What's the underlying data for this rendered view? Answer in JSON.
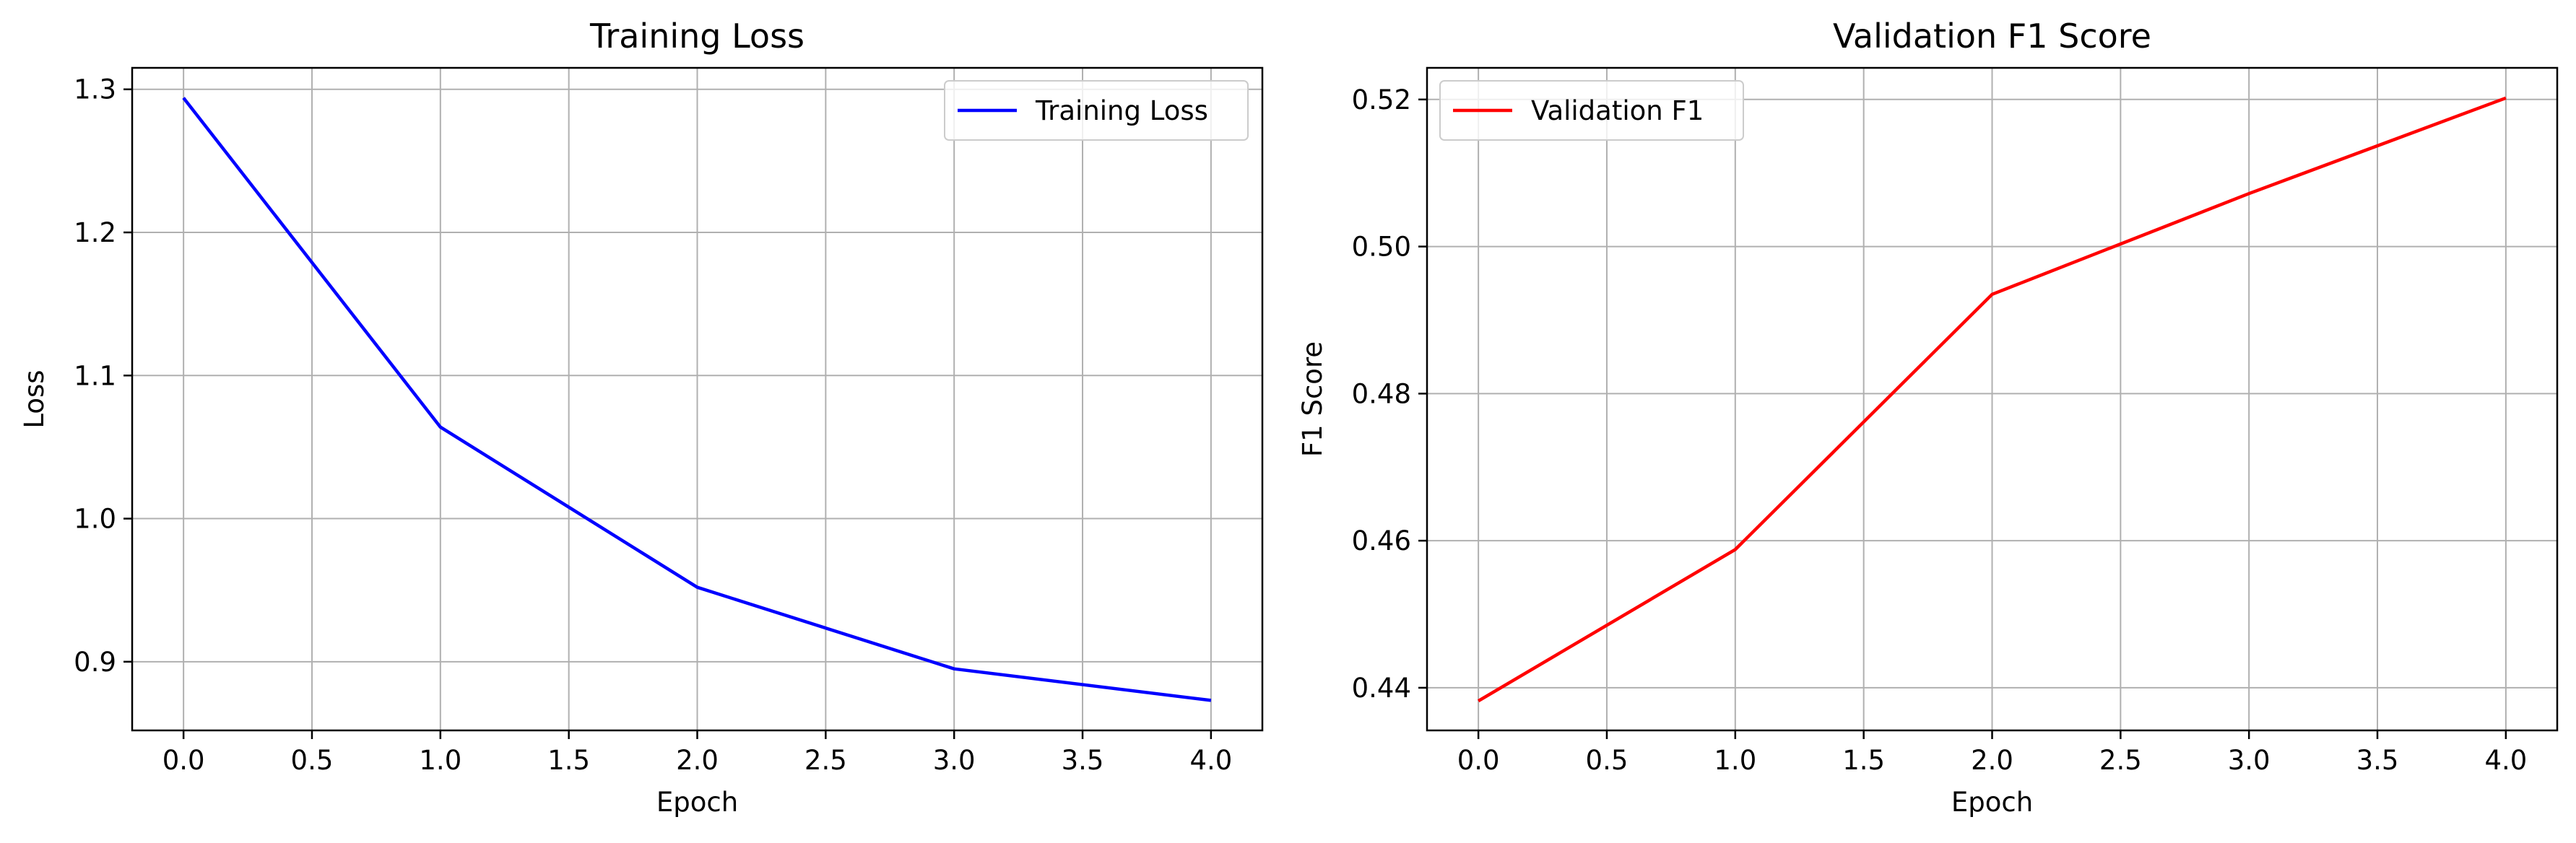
{
  "chart_data": [
    {
      "type": "line",
      "title": "Training Loss",
      "xlabel": "Epoch",
      "ylabel": "Loss",
      "x": [
        0,
        1,
        2,
        3,
        4
      ],
      "series": [
        {
          "name": "Training Loss",
          "color": "#0000ff",
          "values": [
            1.294,
            1.064,
            0.952,
            0.895,
            0.873
          ]
        }
      ],
      "xlim": [
        -0.2,
        4.2
      ],
      "ylim": [
        0.852,
        1.315
      ],
      "xticks": [
        0.0,
        0.5,
        1.0,
        1.5,
        2.0,
        2.5,
        3.0,
        3.5,
        4.0
      ],
      "xtick_labels": [
        "0.0",
        "0.5",
        "1.0",
        "1.5",
        "2.0",
        "2.5",
        "3.0",
        "3.5",
        "4.0"
      ],
      "yticks": [
        0.9,
        1.0,
        1.1,
        1.2,
        1.3
      ],
      "ytick_labels": [
        "0.9",
        "1.0",
        "1.1",
        "1.2",
        "1.3"
      ],
      "grid": true,
      "legend_position": "top-right"
    },
    {
      "type": "line",
      "title": "Validation F1 Score",
      "xlabel": "Epoch",
      "ylabel": "F1 Score",
      "x": [
        0,
        1,
        2,
        3,
        4
      ],
      "series": [
        {
          "name": "Validation F1",
          "color": "#ff0000",
          "values": [
            0.4382,
            0.4588,
            0.4935,
            0.5072,
            0.5202
          ]
        }
      ],
      "xlim": [
        -0.2,
        4.2
      ],
      "ylim": [
        0.4342,
        0.5243
      ],
      "xticks": [
        0.0,
        0.5,
        1.0,
        1.5,
        2.0,
        2.5,
        3.0,
        3.5,
        4.0
      ],
      "xtick_labels": [
        "0.0",
        "0.5",
        "1.0",
        "1.5",
        "2.0",
        "2.5",
        "3.0",
        "3.5",
        "4.0"
      ],
      "yticks": [
        0.44,
        0.46,
        0.48,
        0.5,
        0.52
      ],
      "ytick_labels": [
        "0.44",
        "0.46",
        "0.48",
        "0.50",
        "0.52"
      ],
      "grid": true,
      "legend_position": "top-left"
    }
  ]
}
